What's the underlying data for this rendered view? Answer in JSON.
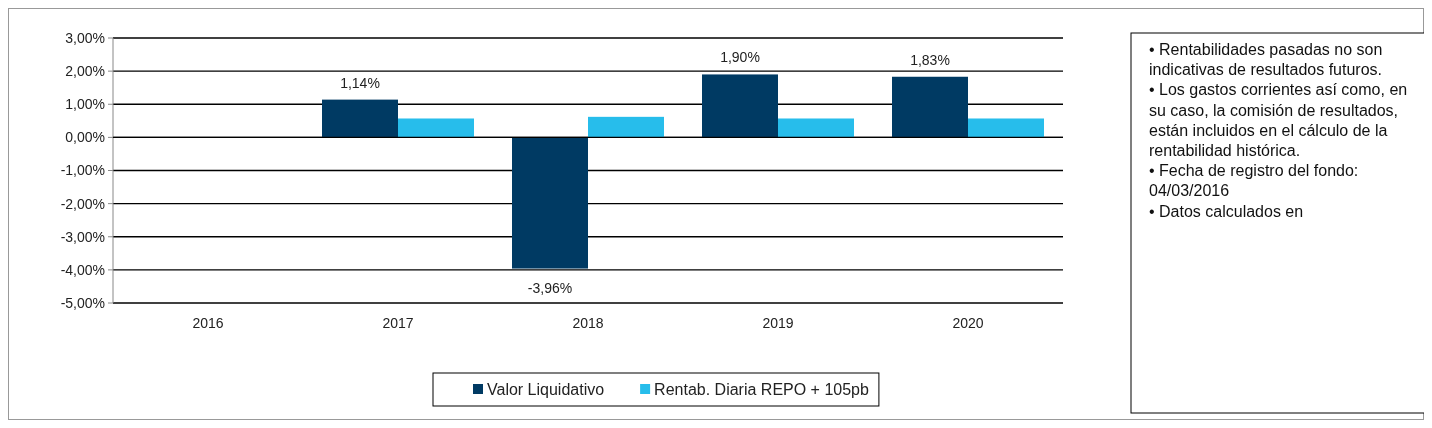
{
  "chart_data": {
    "type": "bar",
    "categories": [
      "2016",
      "2017",
      "2018",
      "2019",
      "2020"
    ],
    "series": [
      {
        "name": "Valor Liquidativo",
        "color": "#003a63",
        "values": [
          null,
          1.14,
          -3.96,
          1.9,
          1.83
        ],
        "value_labels": [
          null,
          "1,14%",
          "-3,96%",
          "1,90%",
          "1,83%"
        ]
      },
      {
        "name": "Rentab. Diaria REPO + 105pb",
        "color": "#27bdeb",
        "values": [
          null,
          0.57,
          0.62,
          0.57,
          0.57
        ]
      }
    ],
    "ylim": [
      -5,
      3
    ],
    "yticks": [
      {
        "value": -5,
        "label": "-5,00%"
      },
      {
        "value": -4,
        "label": "-4,00%"
      },
      {
        "value": -3,
        "label": "-3,00%"
      },
      {
        "value": -2,
        "label": "-2,00%"
      },
      {
        "value": -1,
        "label": "-1,00%"
      },
      {
        "value": 0,
        "label": "0,00%"
      },
      {
        "value": 1,
        "label": "1,00%"
      },
      {
        "value": 2,
        "label": "2,00%"
      },
      {
        "value": 3,
        "label": "3,00%"
      }
    ],
    "grid": "y",
    "legend": "bottom",
    "annotations": [
      "• Rentabilidades pasadas no son indicativas de resultados futuros.",
      "• Los gastos corrientes así como, en su caso, la comisión de resultados, están incluidos en el cálculo de la rentabilidad histórica.",
      "• Fecha de registro del fondo: 04/03/2016",
      "• Datos calculados en"
    ]
  }
}
